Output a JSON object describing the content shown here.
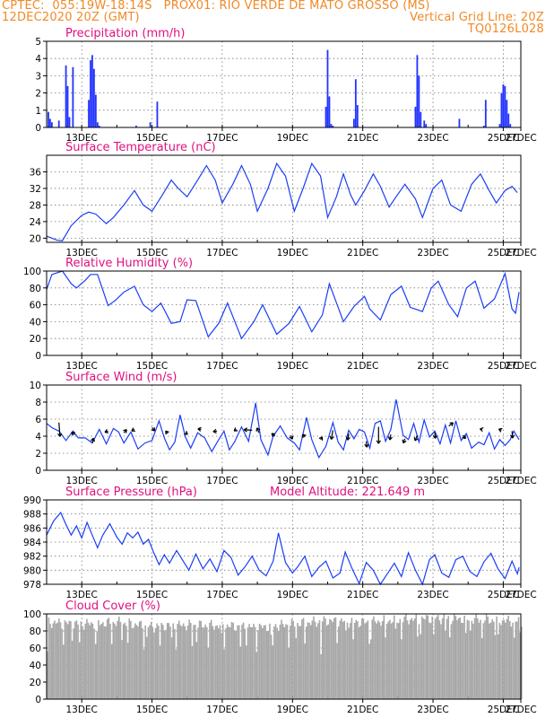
{
  "header": {
    "line1_left": "CPTEC:  055:19W-18:14S   PROX01: RIO VERDE DE MATO GROSSO (MS)",
    "line2_left": "12DEC2020 20Z (GMT)",
    "line2_right": "Vertical Grid Line: 20Z",
    "line3_right": "TQ0126L028"
  },
  "x_ticks": [
    "13DEC",
    "15DEC",
    "17DEC",
    "19DEC",
    "21DEC",
    "23DEC",
    "25DEC",
    "27DEC"
  ],
  "colors": {
    "header": "#f08a28",
    "title": "#e0107f",
    "line": "#1a3ef5",
    "bar": "#2233ff",
    "cloud": "#a8a8a8",
    "grid": "#7a7a7a"
  },
  "chart_data": [
    {
      "type": "bar",
      "title": "Precipitation (mm/h)",
      "x_units": "days since 12DEC2020 20Z",
      "yticks": [
        "0",
        "1",
        "2",
        "3",
        "4",
        "5"
      ],
      "ylim": [
        0,
        5
      ],
      "x": [
        0.05,
        0.1,
        0.15,
        0.35,
        0.55,
        0.6,
        0.65,
        0.75,
        1.2,
        1.25,
        1.3,
        1.35,
        1.4,
        1.45,
        1.5,
        2.55,
        2.95,
        3.15,
        7.95,
        8.0,
        8.05,
        8.1,
        8.15,
        8.75,
        8.8,
        8.85,
        10.5,
        10.55,
        10.6,
        10.65,
        10.75,
        10.8,
        11.75,
        12.45,
        12.5,
        12.9,
        12.95,
        13.0,
        13.05,
        13.1,
        13.15,
        13.2
      ],
      "values": [
        0.9,
        0.5,
        0.3,
        0.4,
        3.6,
        2.4,
        0.6,
        3.5,
        1.6,
        3.9,
        4.2,
        3.4,
        1.9,
        0.3,
        0.1,
        0.1,
        0.3,
        1.5,
        1.2,
        4.5,
        1.8,
        0.2,
        0.1,
        0.5,
        2.8,
        1.3,
        1.2,
        4.2,
        3.0,
        0.9,
        0.4,
        0.2,
        0.5,
        0.1,
        1.6,
        0.2,
        2.0,
        2.5,
        2.4,
        1.6,
        0.8,
        0.2
      ]
    },
    {
      "type": "line",
      "title": "Surface Temperature (nC)",
      "yticks": [
        "20",
        "24",
        "28",
        "32",
        "36"
      ],
      "ylim": [
        19,
        40
      ],
      "x_units": "days since 12DEC2020 20Z",
      "points": [
        [
          0,
          20.5
        ],
        [
          0.3,
          19.5
        ],
        [
          0.45,
          19.4
        ],
        [
          0.7,
          23
        ],
        [
          1.0,
          25.5
        ],
        [
          1.2,
          26.3
        ],
        [
          1.4,
          25.8
        ],
        [
          1.7,
          23.5
        ],
        [
          1.9,
          25
        ],
        [
          2.2,
          28
        ],
        [
          2.5,
          31.5
        ],
        [
          2.75,
          28
        ],
        [
          3.0,
          26.5
        ],
        [
          3.3,
          30.5
        ],
        [
          3.55,
          34
        ],
        [
          3.75,
          32
        ],
        [
          4.0,
          30
        ],
        [
          4.3,
          34
        ],
        [
          4.55,
          37.5
        ],
        [
          4.8,
          34
        ],
        [
          5.0,
          28.5
        ],
        [
          5.3,
          33
        ],
        [
          5.55,
          37.5
        ],
        [
          5.8,
          33
        ],
        [
          6.0,
          26.5
        ],
        [
          6.3,
          32
        ],
        [
          6.55,
          38
        ],
        [
          6.8,
          35
        ],
        [
          7.05,
          26.5
        ],
        [
          7.3,
          32
        ],
        [
          7.55,
          38
        ],
        [
          7.8,
          35
        ],
        [
          8.0,
          25
        ],
        [
          8.25,
          30
        ],
        [
          8.45,
          35.5
        ],
        [
          8.65,
          30.5
        ],
        [
          8.8,
          28
        ],
        [
          9.05,
          31.5
        ],
        [
          9.3,
          35.5
        ],
        [
          9.5,
          32.5
        ],
        [
          9.75,
          27.5
        ],
        [
          9.95,
          30
        ],
        [
          10.2,
          33
        ],
        [
          10.5,
          29.5
        ],
        [
          10.7,
          25
        ],
        [
          11.0,
          32
        ],
        [
          11.25,
          34
        ],
        [
          11.5,
          28
        ],
        [
          11.8,
          26.5
        ],
        [
          12.1,
          33
        ],
        [
          12.35,
          35.5
        ],
        [
          12.6,
          31.5
        ],
        [
          12.8,
          28.5
        ],
        [
          13.05,
          31.5
        ],
        [
          13.25,
          32.5
        ],
        [
          13.4,
          31
        ]
      ]
    },
    {
      "type": "line",
      "title": "Relative Humidity (%)",
      "yticks": [
        "0",
        "20",
        "40",
        "60",
        "80",
        "100"
      ],
      "ylim": [
        0,
        100
      ],
      "x_units": "days since 12DEC2020 20Z",
      "points": [
        [
          0,
          78
        ],
        [
          0.15,
          96
        ],
        [
          0.45,
          100
        ],
        [
          0.7,
          85
        ],
        [
          0.85,
          80
        ],
        [
          1.1,
          89
        ],
        [
          1.25,
          96
        ],
        [
          1.45,
          96
        ],
        [
          1.75,
          59
        ],
        [
          1.95,
          65
        ],
        [
          2.2,
          75
        ],
        [
          2.5,
          82
        ],
        [
          2.75,
          60
        ],
        [
          3.0,
          52
        ],
        [
          3.25,
          62
        ],
        [
          3.55,
          38
        ],
        [
          3.8,
          40
        ],
        [
          4.0,
          66
        ],
        [
          4.25,
          65
        ],
        [
          4.6,
          22
        ],
        [
          4.9,
          38
        ],
        [
          5.15,
          62
        ],
        [
          5.55,
          20
        ],
        [
          5.9,
          40
        ],
        [
          6.15,
          60
        ],
        [
          6.55,
          25
        ],
        [
          6.9,
          38
        ],
        [
          7.2,
          58
        ],
        [
          7.55,
          28
        ],
        [
          7.85,
          48
        ],
        [
          8.05,
          85
        ],
        [
          8.3,
          57
        ],
        [
          8.45,
          40
        ],
        [
          8.75,
          58
        ],
        [
          9.05,
          70
        ],
        [
          9.2,
          55
        ],
        [
          9.5,
          42
        ],
        [
          9.8,
          72
        ],
        [
          10.1,
          82
        ],
        [
          10.35,
          57
        ],
        [
          10.7,
          52
        ],
        [
          10.95,
          80
        ],
        [
          11.15,
          88
        ],
        [
          11.45,
          60
        ],
        [
          11.7,
          46
        ],
        [
          11.95,
          80
        ],
        [
          12.2,
          88
        ],
        [
          12.45,
          56
        ],
        [
          12.75,
          67
        ],
        [
          13.05,
          97
        ],
        [
          13.25,
          55
        ],
        [
          13.35,
          50
        ],
        [
          13.45,
          75
        ]
      ]
    },
    {
      "type": "line",
      "title": "Surface Wind (m/s)",
      "yticks": [
        "0",
        "2",
        "4",
        "6",
        "8",
        "10"
      ],
      "ylim": [
        0,
        10
      ],
      "x_units": "days since 12DEC2020 20Z",
      "points": [
        [
          0,
          5.5
        ],
        [
          0.15,
          5.0
        ],
        [
          0.35,
          4.6
        ],
        [
          0.55,
          3.5
        ],
        [
          0.75,
          4.6
        ],
        [
          0.9,
          3.8
        ],
        [
          1.1,
          3.8
        ],
        [
          1.3,
          3.2
        ],
        [
          1.5,
          4.8
        ],
        [
          1.7,
          3.1
        ],
        [
          1.9,
          4.9
        ],
        [
          2.05,
          4.5
        ],
        [
          2.2,
          3.2
        ],
        [
          2.4,
          4.5
        ],
        [
          2.6,
          2.5
        ],
        [
          2.8,
          3.2
        ],
        [
          3.0,
          3.5
        ],
        [
          3.2,
          5.8
        ],
        [
          3.35,
          3.8
        ],
        [
          3.5,
          2.4
        ],
        [
          3.65,
          3.3
        ],
        [
          3.8,
          6.5
        ],
        [
          3.95,
          3.9
        ],
        [
          4.1,
          2.6
        ],
        [
          4.3,
          4.4
        ],
        [
          4.5,
          3.8
        ],
        [
          4.7,
          2.2
        ],
        [
          4.9,
          3.6
        ],
        [
          5.05,
          4.6
        ],
        [
          5.2,
          2.4
        ],
        [
          5.35,
          3.3
        ],
        [
          5.55,
          5.1
        ],
        [
          5.75,
          3.4
        ],
        [
          5.95,
          7.9
        ],
        [
          6.1,
          3.6
        ],
        [
          6.3,
          1.8
        ],
        [
          6.45,
          4.0
        ],
        [
          6.65,
          5.2
        ],
        [
          6.85,
          3.8
        ],
        [
          7.05,
          3.2
        ],
        [
          7.2,
          2.4
        ],
        [
          7.4,
          6.2
        ],
        [
          7.55,
          3.6
        ],
        [
          7.75,
          1.5
        ],
        [
          7.95,
          2.8
        ],
        [
          8.15,
          5.6
        ],
        [
          8.3,
          3.3
        ],
        [
          8.45,
          2.4
        ],
        [
          8.6,
          4.7
        ],
        [
          8.75,
          3.7
        ],
        [
          8.9,
          4.8
        ],
        [
          9.05,
          4.5
        ],
        [
          9.2,
          2.6
        ],
        [
          9.35,
          5.5
        ],
        [
          9.5,
          5.8
        ],
        [
          9.65,
          3.4
        ],
        [
          9.8,
          4.8
        ],
        [
          9.95,
          8.3
        ],
        [
          10.15,
          4.1
        ],
        [
          10.3,
          3.6
        ],
        [
          10.45,
          5.5
        ],
        [
          10.6,
          3.3
        ],
        [
          10.75,
          5.9
        ],
        [
          10.9,
          3.9
        ],
        [
          11.05,
          4.6
        ],
        [
          11.2,
          3.1
        ],
        [
          11.35,
          5.3
        ],
        [
          11.5,
          3.2
        ],
        [
          11.65,
          5.8
        ],
        [
          11.8,
          3.5
        ],
        [
          11.95,
          4.3
        ],
        [
          12.1,
          2.6
        ],
        [
          12.3,
          3.3
        ],
        [
          12.45,
          3.0
        ],
        [
          12.6,
          4.4
        ],
        [
          12.75,
          2.5
        ],
        [
          12.9,
          3.6
        ],
        [
          13.05,
          2.9
        ],
        [
          13.2,
          3.6
        ],
        [
          13.3,
          4.6
        ],
        [
          13.45,
          3.6
        ]
      ],
      "wind_vectors": [
        [
          0.35,
          5.6,
          0.2,
          -2.6
        ],
        [
          0.8,
          4.2,
          -0.6,
          0.4
        ],
        [
          1.3,
          3.2,
          0.2,
          0.9
        ],
        [
          1.75,
          4.6,
          -0.6,
          -0.2
        ],
        [
          2.2,
          4.4,
          0.5,
          0.6
        ],
        [
          2.5,
          4.8,
          -0.5,
          -0.3
        ],
        [
          3.0,
          5.0,
          0.5,
          -0.6
        ],
        [
          3.45,
          4.3,
          -0.4,
          0.5
        ],
        [
          3.95,
          4.4,
          0.4,
          -0.3
        ],
        [
          4.4,
          4.8,
          -0.6,
          0.1
        ],
        [
          4.85,
          4.6,
          -0.7,
          -0.1
        ],
        [
          5.4,
          4.8,
          -0.4,
          -0.3
        ],
        [
          5.85,
          4.7,
          -1.5,
          0.1
        ],
        [
          6.05,
          4.4,
          -0.4,
          0.9
        ],
        [
          6.5,
          4.0,
          -0.6,
          0.5
        ],
        [
          6.95,
          4.1,
          0.3,
          -0.7
        ],
        [
          7.35,
          3.9,
          -0.4,
          0.5
        ],
        [
          7.8,
          3.6,
          0.3,
          0.5
        ],
        [
          8.15,
          4.7,
          -0.3,
          -1.7
        ],
        [
          8.6,
          4.3,
          -0.2,
          -1.2
        ],
        [
          9.1,
          3.4,
          0.1,
          -1.1
        ],
        [
          9.45,
          5.1,
          0.0,
          -3.1
        ],
        [
          9.8,
          4.2,
          -0.2,
          -1.0
        ],
        [
          10.2,
          3.7,
          -0.3,
          -0.8
        ],
        [
          10.55,
          4.1,
          -0.4,
          -1.0
        ],
        [
          11.05,
          4.5,
          0.1,
          -1.2
        ],
        [
          11.45,
          5.2,
          0.8,
          0.6
        ],
        [
          11.85,
          4.1,
          0.5,
          -0.6
        ],
        [
          12.4,
          4.8,
          -0.4,
          0.1
        ],
        [
          12.95,
          4.7,
          -0.5,
          0.2
        ],
        [
          13.25,
          4.6,
          0.1,
          -1.3
        ]
      ]
    },
    {
      "type": "line",
      "title": "Surface Pressure (hPa)",
      "annotation": "Model Altitude: 221.649  m",
      "yticks": [
        "978",
        "980",
        "982",
        "984",
        "986",
        "988",
        "990"
      ],
      "ylim": [
        978,
        990
      ],
      "x_units": "days since 12DEC2020 20Z",
      "points": [
        [
          0,
          985
        ],
        [
          0.2,
          987
        ],
        [
          0.4,
          988.2
        ],
        [
          0.55,
          986.5
        ],
        [
          0.7,
          985
        ],
        [
          0.85,
          986.3
        ],
        [
          1.0,
          984.6
        ],
        [
          1.15,
          986.8
        ],
        [
          1.3,
          985
        ],
        [
          1.45,
          983.2
        ],
        [
          1.6,
          985
        ],
        [
          1.8,
          986.6
        ],
        [
          2.0,
          984.7
        ],
        [
          2.15,
          983.7
        ],
        [
          2.3,
          985.3
        ],
        [
          2.45,
          984.6
        ],
        [
          2.6,
          985.4
        ],
        [
          2.75,
          983.7
        ],
        [
          2.9,
          984.4
        ],
        [
          3.05,
          982.5
        ],
        [
          3.2,
          980.8
        ],
        [
          3.35,
          982.2
        ],
        [
          3.5,
          981
        ],
        [
          3.7,
          982.8
        ],
        [
          3.85,
          981.6
        ],
        [
          4.05,
          980
        ],
        [
          4.25,
          982.3
        ],
        [
          4.45,
          980.2
        ],
        [
          4.65,
          981.6
        ],
        [
          4.85,
          979.8
        ],
        [
          5.05,
          982.8
        ],
        [
          5.25,
          981.8
        ],
        [
          5.45,
          979.3
        ],
        [
          5.65,
          980.5
        ],
        [
          5.85,
          982
        ],
        [
          6.05,
          980
        ],
        [
          6.25,
          979.2
        ],
        [
          6.45,
          981.3
        ],
        [
          6.6,
          985.3
        ],
        [
          6.8,
          981.1
        ],
        [
          7.0,
          979.6
        ],
        [
          7.15,
          980.5
        ],
        [
          7.35,
          982
        ],
        [
          7.55,
          979.1
        ],
        [
          7.75,
          980.4
        ],
        [
          7.95,
          981.3
        ],
        [
          8.15,
          978.9
        ],
        [
          8.35,
          979.6
        ],
        [
          8.5,
          982.6
        ],
        [
          8.7,
          980.2
        ],
        [
          8.9,
          978.1
        ],
        [
          9.1,
          981.1
        ],
        [
          9.3,
          980
        ],
        [
          9.5,
          978
        ],
        [
          9.7,
          979.5
        ],
        [
          9.9,
          981
        ],
        [
          10.1,
          979.1
        ],
        [
          10.3,
          982.5
        ],
        [
          10.5,
          980
        ],
        [
          10.7,
          978
        ],
        [
          10.9,
          981.5
        ],
        [
          11.05,
          982.2
        ],
        [
          11.25,
          979.6
        ],
        [
          11.45,
          979
        ],
        [
          11.65,
          981.5
        ],
        [
          11.85,
          982
        ],
        [
          12.05,
          979.8
        ],
        [
          12.25,
          979.1
        ],
        [
          12.45,
          981.2
        ],
        [
          12.65,
          982.4
        ],
        [
          12.85,
          980.2
        ],
        [
          13.05,
          978.8
        ],
        [
          13.25,
          981.3
        ],
        [
          13.4,
          979.5
        ],
        [
          13.45,
          980.4
        ]
      ]
    },
    {
      "type": "bar",
      "title": "Cloud Cover (%)",
      "yticks": [
        "0",
        "20",
        "40",
        "60",
        "80",
        "100"
      ],
      "ylim": [
        0,
        100
      ],
      "x_units": "days since 12DEC2020 20Z",
      "x": [
        0,
        1,
        2,
        3,
        4,
        5,
        6,
        7,
        8,
        9,
        10,
        11,
        12,
        13
      ],
      "values": [
        90,
        88,
        90,
        85,
        87,
        86,
        84,
        88,
        92,
        90,
        93,
        95,
        94,
        92
      ]
    }
  ]
}
